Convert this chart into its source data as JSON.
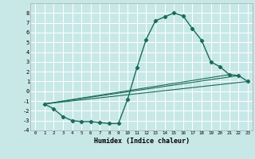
{
  "title": "",
  "xlabel": "Humidex (Indice chaleur)",
  "background_color": "#c8e8e8",
  "grid_color": "#ffffff",
  "line_color": "#1a6b5a",
  "ylim": [
    -4,
    9
  ],
  "xlim": [
    -0.5,
    23.5
  ],
  "yticks": [
    -4,
    -3,
    -2,
    -1,
    0,
    1,
    2,
    3,
    4,
    5,
    6,
    7,
    8
  ],
  "xticks": [
    0,
    1,
    2,
    3,
    4,
    5,
    6,
    7,
    8,
    9,
    10,
    11,
    12,
    13,
    14,
    15,
    16,
    17,
    18,
    19,
    20,
    21,
    22,
    23
  ],
  "series_main": {
    "x": [
      1,
      2,
      3,
      4,
      5,
      6,
      7,
      8,
      9,
      10,
      11,
      12,
      13,
      14,
      15,
      16,
      17,
      18,
      19,
      20,
      21,
      22,
      23
    ],
    "y": [
      -1.3,
      -1.8,
      -2.6,
      -3.0,
      -3.1,
      -3.1,
      -3.2,
      -3.3,
      -3.3,
      -0.8,
      2.4,
      5.3,
      7.2,
      7.6,
      8.0,
      7.7,
      6.4,
      5.2,
      3.0,
      2.5,
      1.7,
      1.6,
      1.0
    ]
  },
  "trend_lines": [
    {
      "x": [
        1,
        21
      ],
      "y": [
        -1.3,
        1.7
      ]
    },
    {
      "x": [
        1,
        22
      ],
      "y": [
        -1.3,
        1.6
      ]
    },
    {
      "x": [
        1,
        23
      ],
      "y": [
        -1.3,
        1.0
      ]
    }
  ]
}
